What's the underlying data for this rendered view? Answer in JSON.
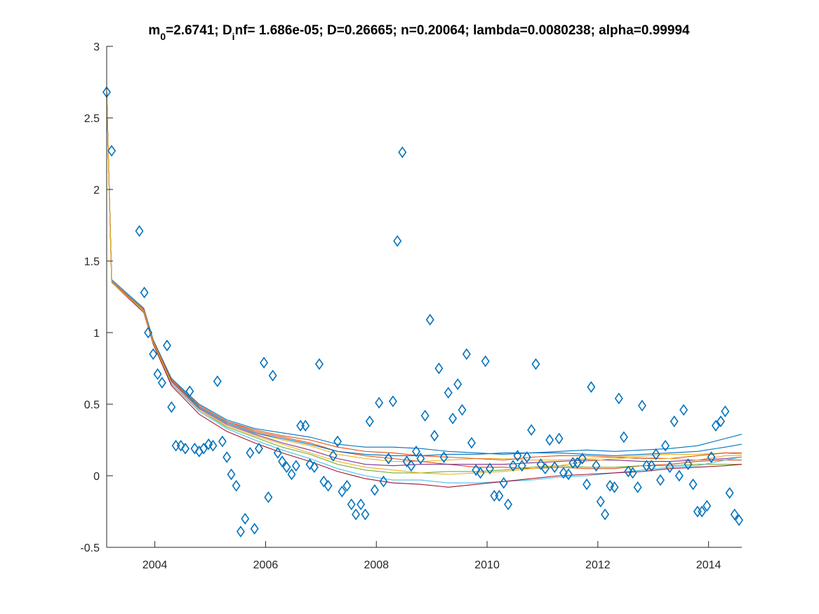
{
  "chart_data": {
    "type": "scatter",
    "title": {
      "parts": [
        {
          "text": "m",
          "sub": false
        },
        {
          "text": "0",
          "sub": true
        },
        {
          "text": "=2.6741; D",
          "sub": false
        },
        {
          "text": "i",
          "sub": true
        },
        {
          "text": "nf= 1.686e-05; D=0.26665; n=0.20064; lambda=0.0080238; alpha=0.99994",
          "sub": false
        }
      ]
    },
    "xlabel": "",
    "ylabel": "",
    "xlim": [
      2003.13,
      2014.6
    ],
    "ylim": [
      -0.5,
      3
    ],
    "xticks": [
      2004,
      2006,
      2008,
      2010,
      2012,
      2014
    ],
    "xtick_labels": [
      "2004",
      "2006",
      "2008",
      "2010",
      "2012",
      "2014"
    ],
    "yticks": [
      -0.5,
      0,
      0.5,
      1,
      1.5,
      2,
      2.5,
      3
    ],
    "ytick_labels": [
      "-0.5",
      "0",
      "0.5",
      "1",
      "1.5",
      "2",
      "2.5",
      "3"
    ],
    "grid": false,
    "colors": {
      "observed": "#0072BD",
      "axis": "#262626",
      "series_palette": [
        "#0072BD",
        "#D95319",
        "#EDB120",
        "#7E2F8E",
        "#77AC30",
        "#4DBEEE",
        "#A2142F"
      ]
    },
    "observed": {
      "marker": "diamond",
      "x": [
        2003.13,
        2003.22,
        2003.72,
        2003.81,
        2003.88,
        2003.97,
        2004.05,
        2004.13,
        2004.22,
        2004.3,
        2004.38,
        2004.47,
        2004.55,
        2004.63,
        2004.72,
        2004.8,
        2004.88,
        2004.97,
        2005.05,
        2005.13,
        2005.22,
        2005.3,
        2005.38,
        2005.47,
        2005.55,
        2005.63,
        2005.72,
        2005.8,
        2005.88,
        2005.97,
        2006.05,
        2006.13,
        2006.22,
        2006.3,
        2006.38,
        2006.47,
        2006.55,
        2006.63,
        2006.72,
        2006.8,
        2006.88,
        2006.97,
        2007.05,
        2007.13,
        2007.22,
        2007.3,
        2007.38,
        2007.47,
        2007.55,
        2007.63,
        2007.72,
        2007.8,
        2007.88,
        2007.97,
        2008.05,
        2008.13,
        2008.22,
        2008.3,
        2008.38,
        2008.47,
        2008.55,
        2008.63,
        2008.72,
        2008.8,
        2008.88,
        2008.97,
        2009.05,
        2009.13,
        2009.22,
        2009.3,
        2009.38,
        2009.47,
        2009.55,
        2009.63,
        2009.72,
        2009.8,
        2009.88,
        2009.97,
        2010.05,
        2010.13,
        2010.22,
        2010.3,
        2010.38,
        2010.47,
        2010.55,
        2010.63,
        2010.72,
        2010.8,
        2010.88,
        2010.97,
        2011.05,
        2011.13,
        2011.22,
        2011.3,
        2011.38,
        2011.47,
        2011.55,
        2011.63,
        2011.72,
        2011.8,
        2011.88,
        2011.97,
        2012.05,
        2012.13,
        2012.22,
        2012.3,
        2012.38,
        2012.47,
        2012.55,
        2012.63,
        2012.72,
        2012.8,
        2012.88,
        2012.97,
        2013.05,
        2013.13,
        2013.22,
        2013.3,
        2013.38,
        2013.47,
        2013.55,
        2013.63,
        2013.72,
        2013.8,
        2013.88,
        2013.97,
        2014.05,
        2014.13,
        2014.22,
        2014.3,
        2014.38,
        2014.47,
        2014.55
      ],
      "y": [
        2.68,
        2.27,
        1.71,
        1.28,
        1.0,
        0.85,
        0.71,
        0.65,
        0.91,
        0.48,
        0.21,
        0.21,
        0.19,
        0.59,
        0.19,
        0.17,
        0.19,
        0.22,
        0.21,
        0.66,
        0.24,
        0.13,
        0.01,
        -0.07,
        -0.39,
        -0.3,
        0.16,
        -0.37,
        0.19,
        0.79,
        -0.15,
        0.7,
        0.16,
        0.1,
        0.06,
        0.01,
        0.07,
        0.35,
        0.35,
        0.08,
        0.06,
        0.78,
        -0.04,
        -0.07,
        0.14,
        0.24,
        -0.11,
        -0.07,
        -0.2,
        -0.27,
        -0.2,
        -0.27,
        0.38,
        -0.1,
        0.51,
        -0.04,
        0.12,
        0.52,
        1.64,
        2.26,
        0.1,
        0.07,
        0.17,
        0.12,
        0.42,
        1.09,
        0.28,
        0.75,
        0.13,
        0.58,
        0.4,
        0.64,
        0.46,
        0.85,
        0.23,
        0.04,
        0.02,
        0.8,
        0.05,
        -0.14,
        -0.14,
        -0.05,
        -0.2,
        0.07,
        0.14,
        0.07,
        0.13,
        0.32,
        0.78,
        0.08,
        0.05,
        0.25,
        0.06,
        0.26,
        0.02,
        0.01,
        0.09,
        0.09,
        0.12,
        -0.06,
        0.62,
        0.07,
        -0.18,
        -0.27,
        -0.07,
        -0.08,
        0.54,
        0.27,
        0.03,
        0.02,
        -0.08,
        0.49,
        0.07,
        0.07,
        0.15,
        -0.03,
        0.21,
        0.06,
        0.38,
        0.0,
        0.46,
        0.08,
        -0.06,
        -0.25,
        -0.25,
        -0.21,
        0.13,
        0.35,
        0.38,
        0.45,
        -0.12,
        -0.27,
        -0.31
      ]
    },
    "series_x": [
      2003.13,
      2003.22,
      2003.8,
      2003.97,
      2004.3,
      2004.8,
      2005.3,
      2005.8,
      2006.3,
      2006.8,
      2007.3,
      2007.8,
      2008.3,
      2008.8,
      2009.3,
      2009.8,
      2010.3,
      2010.8,
      2011.3,
      2011.8,
      2012.3,
      2012.8,
      2013.3,
      2013.8,
      2014.3,
      2014.6
    ],
    "series": [
      {
        "y": [
          2.68,
          1.37,
          1.17,
          0.95,
          0.68,
          0.5,
          0.39,
          0.33,
          0.3,
          0.27,
          0.22,
          0.2,
          0.2,
          0.19,
          0.17,
          0.16,
          0.15,
          0.16,
          0.17,
          0.18,
          0.17,
          0.18,
          0.19,
          0.21,
          0.26,
          0.29
        ]
      },
      {
        "y": [
          2.68,
          1.36,
          1.16,
          0.94,
          0.67,
          0.49,
          0.38,
          0.31,
          0.27,
          0.23,
          0.17,
          0.14,
          0.12,
          0.1,
          0.08,
          0.06,
          0.06,
          0.05,
          0.06,
          0.05,
          0.05,
          0.07,
          0.08,
          0.1,
          0.11,
          0.11
        ]
      },
      {
        "y": [
          2.68,
          1.36,
          1.16,
          0.94,
          0.67,
          0.48,
          0.37,
          0.3,
          0.25,
          0.21,
          0.15,
          0.12,
          0.1,
          0.1,
          0.11,
          0.12,
          0.12,
          0.11,
          0.11,
          0.12,
          0.13,
          0.14,
          0.15,
          0.15,
          0.16,
          0.15
        ]
      },
      {
        "y": [
          2.68,
          1.36,
          1.16,
          0.93,
          0.66,
          0.47,
          0.36,
          0.29,
          0.23,
          0.18,
          0.12,
          0.08,
          0.07,
          0.08,
          0.08,
          0.08,
          0.08,
          0.09,
          0.1,
          0.11,
          0.11,
          0.1,
          0.1,
          0.11,
          0.12,
          0.13
        ]
      },
      {
        "y": [
          2.68,
          1.36,
          1.15,
          0.93,
          0.65,
          0.46,
          0.34,
          0.27,
          0.2,
          0.15,
          0.08,
          0.04,
          0.02,
          0.02,
          0.03,
          0.03,
          0.04,
          0.06,
          0.07,
          0.06,
          0.06,
          0.07,
          0.07,
          0.08,
          0.08,
          0.08
        ]
      },
      {
        "y": [
          2.68,
          1.35,
          1.15,
          0.92,
          0.64,
          0.45,
          0.33,
          0.25,
          0.18,
          0.12,
          0.05,
          0.0,
          -0.03,
          -0.03,
          -0.05,
          -0.05,
          -0.04,
          -0.03,
          -0.01,
          0.0,
          0.02,
          0.04,
          0.06,
          0.07,
          0.11,
          0.13
        ]
      },
      {
        "y": [
          2.68,
          1.35,
          1.14,
          0.92,
          0.63,
          0.43,
          0.31,
          0.23,
          0.16,
          0.1,
          0.03,
          -0.02,
          -0.05,
          -0.06,
          -0.08,
          -0.06,
          -0.04,
          -0.02,
          0.0,
          0.01,
          0.02,
          0.03,
          0.05,
          0.06,
          0.07,
          0.08
        ]
      },
      {
        "y": [
          2.68,
          1.36,
          1.16,
          0.94,
          0.67,
          0.48,
          0.37,
          0.3,
          0.26,
          0.22,
          0.17,
          0.15,
          0.14,
          0.14,
          0.15,
          0.15,
          0.16,
          0.16,
          0.16,
          0.15,
          0.14,
          0.15,
          0.16,
          0.17,
          0.2,
          0.22
        ]
      },
      {
        "y": [
          2.68,
          1.36,
          1.16,
          0.94,
          0.67,
          0.49,
          0.38,
          0.32,
          0.28,
          0.25,
          0.2,
          0.17,
          0.16,
          0.14,
          0.13,
          0.12,
          0.11,
          0.13,
          0.14,
          0.14,
          0.13,
          0.12,
          0.12,
          0.14,
          0.16,
          0.16
        ]
      },
      {
        "y": [
          2.68,
          1.35,
          1.15,
          0.93,
          0.65,
          0.46,
          0.35,
          0.28,
          0.22,
          0.16,
          0.1,
          0.06,
          0.04,
          0.02,
          0.01,
          0.02,
          0.03,
          0.05,
          0.07,
          0.1,
          0.12,
          0.13,
          0.12,
          0.11,
          0.14,
          0.14
        ]
      }
    ]
  }
}
